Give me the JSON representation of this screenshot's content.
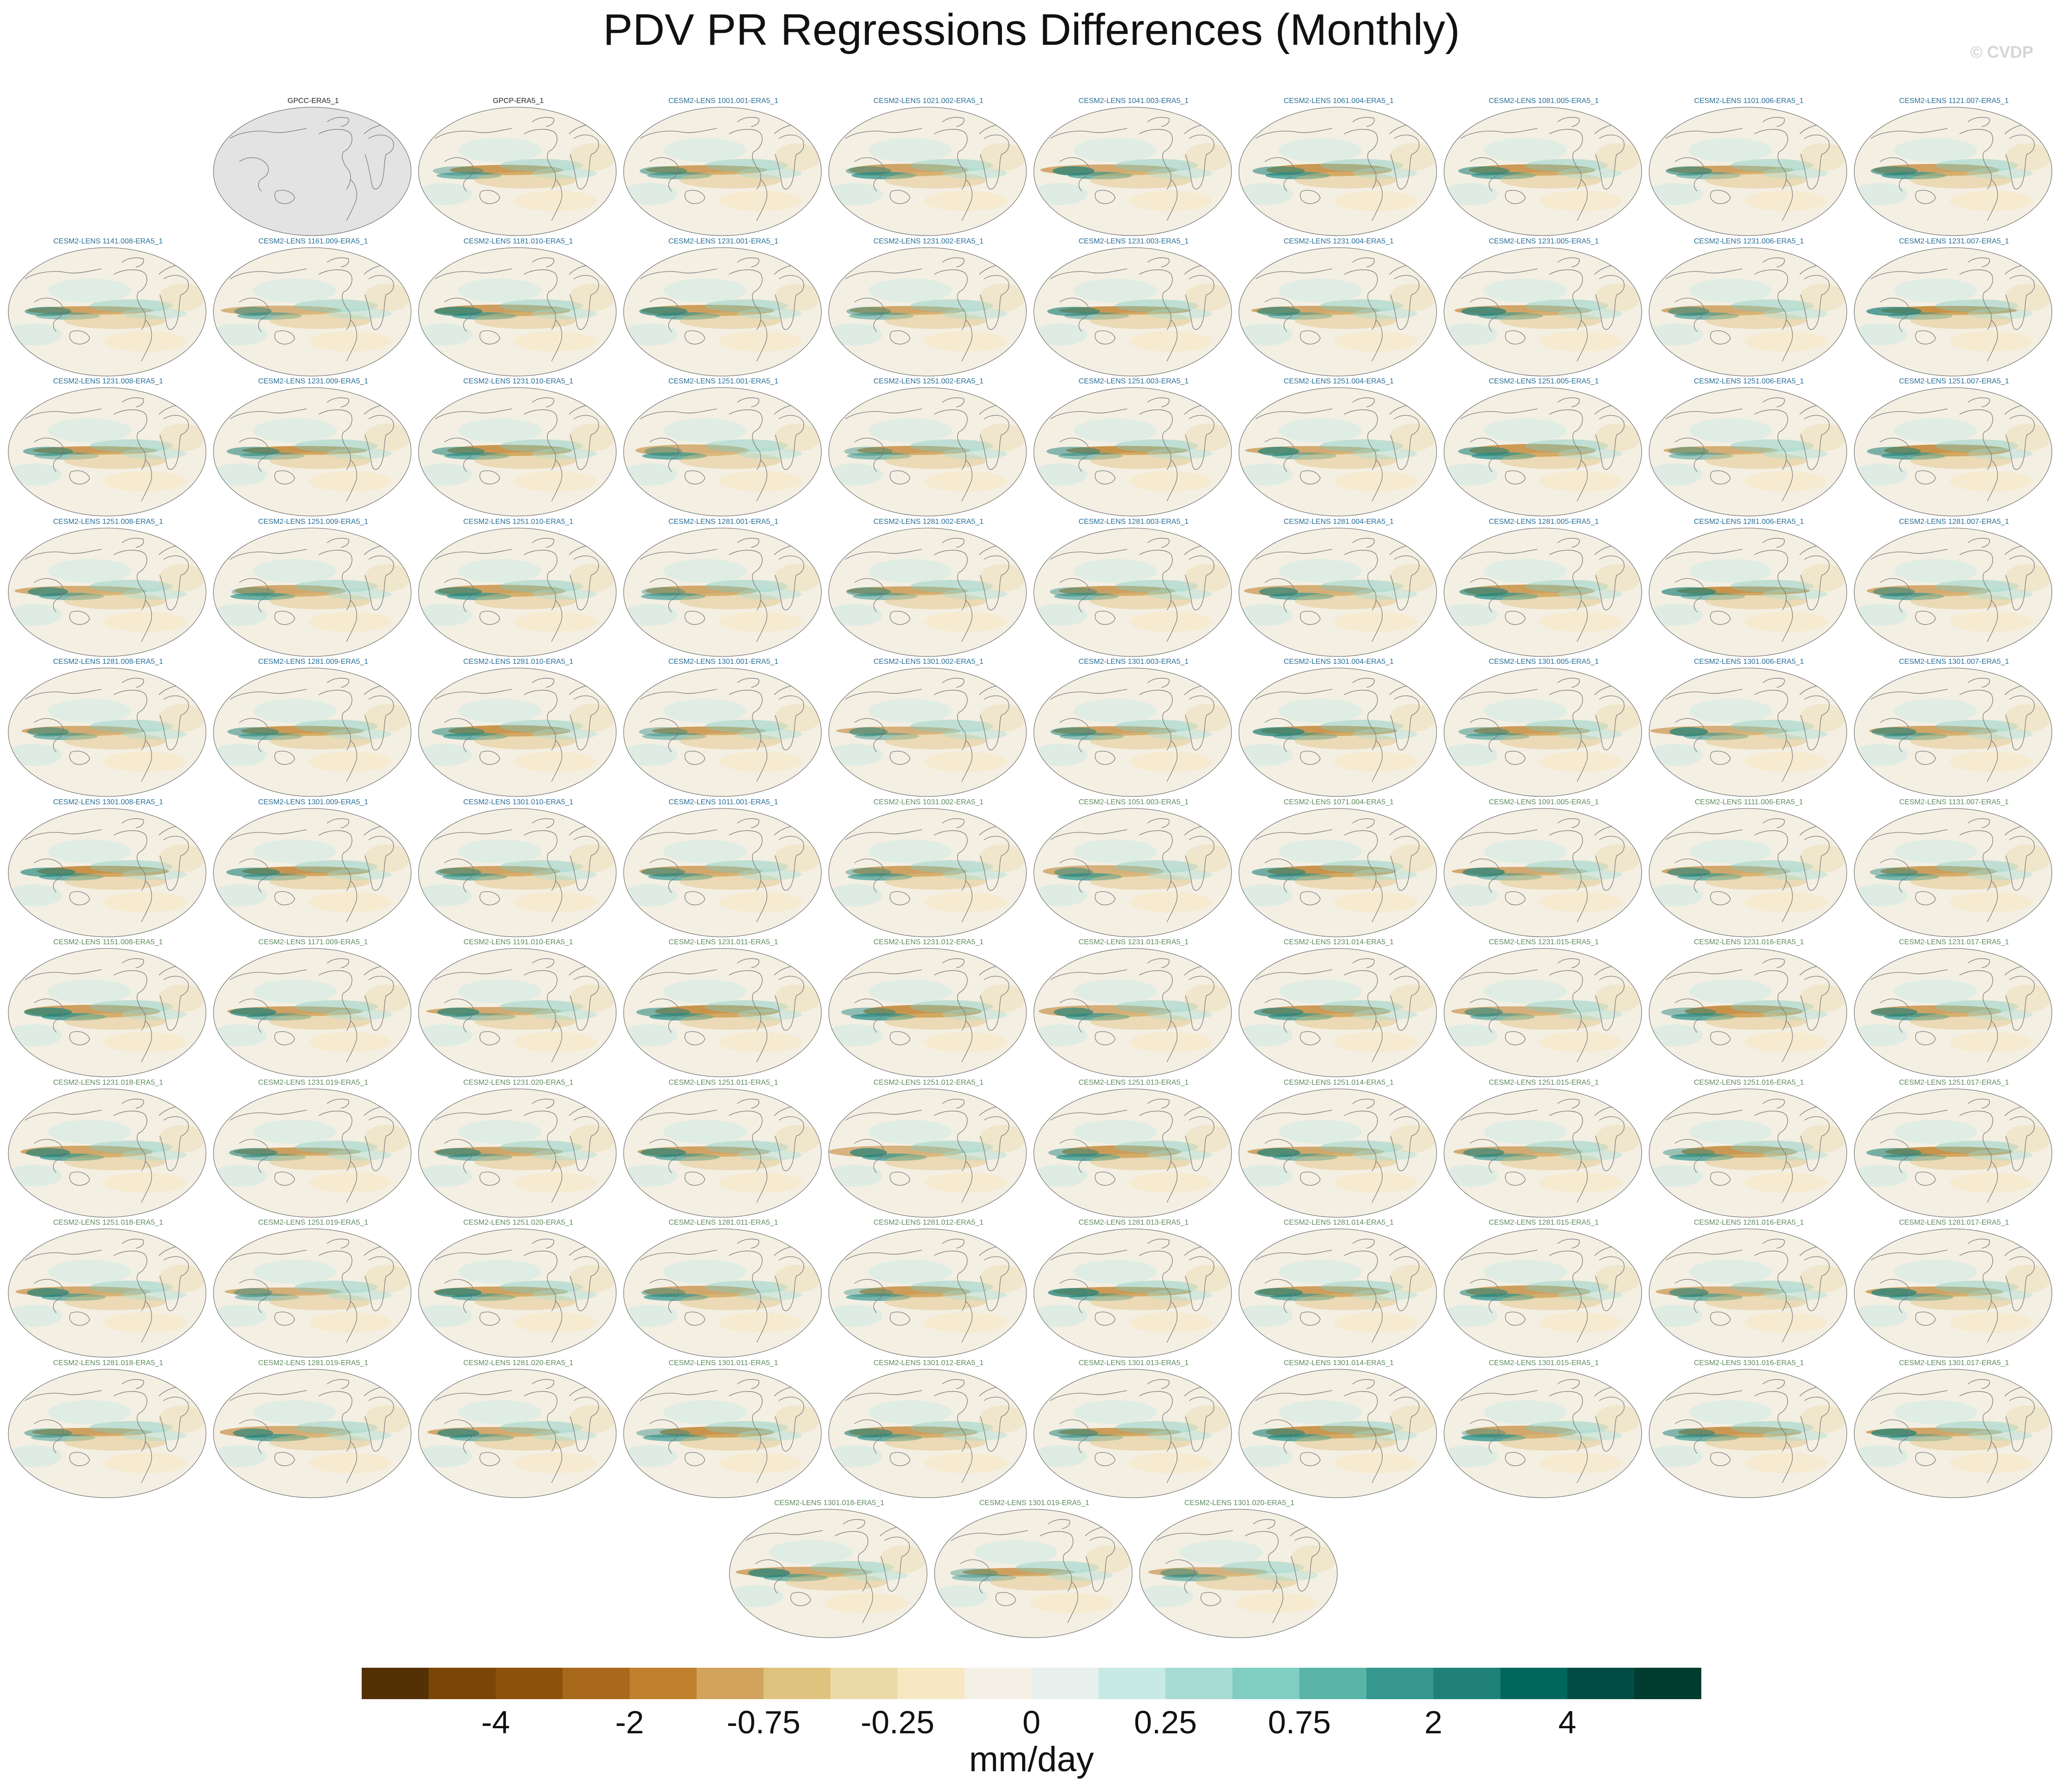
{
  "title": "PDV PR Regressions Differences (Monthly)",
  "watermark": "© CVDP",
  "panels": [
    "GPCC-ERA5_1",
    "GPCP-ERA5_1",
    "CESM2-LENS 1001.001-ERA5_1",
    "CESM2-LENS 1021.002-ERA5_1",
    "CESM2-LENS 1041.003-ERA5_1",
    "CESM2-LENS 1061.004-ERA5_1",
    "CESM2-LENS 1081.005-ERA5_1",
    "CESM2-LENS 1101.006-ERA5_1",
    "CESM2-LENS 1121.007-ERA5_1",
    "CESM2-LENS 1141.008-ERA5_1",
    "CESM2-LENS 1161.009-ERA5_1",
    "CESM2-LENS 1181.010-ERA5_1",
    "CESM2-LENS 1231.001-ERA5_1",
    "CESM2-LENS 1231.002-ERA5_1",
    "CESM2-LENS 1231.003-ERA5_1",
    "CESM2-LENS 1231.004-ERA5_1",
    "CESM2-LENS 1231.005-ERA5_1",
    "CESM2-LENS 1231.006-ERA5_1",
    "CESM2-LENS 1231.007-ERA5_1",
    "CESM2-LENS 1231.008-ERA5_1",
    "CESM2-LENS 1231.009-ERA5_1",
    "CESM2-LENS 1231.010-ERA5_1",
    "CESM2-LENS 1251.001-ERA5_1",
    "CESM2-LENS 1251.002-ERA5_1",
    "CESM2-LENS 1251.003-ERA5_1",
    "CESM2-LENS 1251.004-ERA5_1",
    "CESM2-LENS 1251.005-ERA5_1",
    "CESM2-LENS 1251.006-ERA5_1",
    "CESM2-LENS 1251.007-ERA5_1",
    "CESM2-LENS 1251.008-ERA5_1",
    "CESM2-LENS 1251.009-ERA5_1",
    "CESM2-LENS 1251.010-ERA5_1",
    "CESM2-LENS 1281.001-ERA5_1",
    "CESM2-LENS 1281.002-ERA5_1",
    "CESM2-LENS 1281.003-ERA5_1",
    "CESM2-LENS 1281.004-ERA5_1",
    "CESM2-LENS 1281.005-ERA5_1",
    "CESM2-LENS 1281.006-ERA5_1",
    "CESM2-LENS 1281.007-ERA5_1",
    "CESM2-LENS 1281.008-ERA5_1",
    "CESM2-LENS 1281.009-ERA5_1",
    "CESM2-LENS 1281.010-ERA5_1",
    "CESM2-LENS 1301.001-ERA5_1",
    "CESM2-LENS 1301.002-ERA5_1",
    "CESM2-LENS 1301.003-ERA5_1",
    "CESM2-LENS 1301.004-ERA5_1",
    "CESM2-LENS 1301.005-ERA5_1",
    "CESM2-LENS 1301.006-ERA5_1",
    "CESM2-LENS 1301.007-ERA5_1",
    "CESM2-LENS 1301.008-ERA5_1",
    "CESM2-LENS 1301.009-ERA5_1",
    "CESM2-LENS 1301.010-ERA5_1",
    "CESM2-LENS 1011.001-ERA5_1",
    "CESM2-LENS 1031.002-ERA5_1",
    "CESM2-LENS 1051.003-ERA5_1",
    "CESM2-LENS 1071.004-ERA5_1",
    "CESM2-LENS 1091.005-ERA5_1",
    "CESM2-LENS 1111.006-ERA5_1",
    "CESM2-LENS 1131.007-ERA5_1",
    "CESM2-LENS 1151.008-ERA5_1",
    "CESM2-LENS 1171.009-ERA5_1",
    "CESM2-LENS 1191.010-ERA5_1",
    "CESM2-LENS 1231.011-ERA5_1",
    "CESM2-LENS 1231.012-ERA5_1",
    "CESM2-LENS 1231.013-ERA5_1",
    "CESM2-LENS 1231.014-ERA5_1",
    "CESM2-LENS 1231.015-ERA5_1",
    "CESM2-LENS 1231.016-ERA5_1",
    "CESM2-LENS 1231.017-ERA5_1",
    "CESM2-LENS 1231.018-ERA5_1",
    "CESM2-LENS 1231.019-ERA5_1",
    "CESM2-LENS 1231.020-ERA5_1",
    "CESM2-LENS 1251.011-ERA5_1",
    "CESM2-LENS 1251.012-ERA5_1",
    "CESM2-LENS 1251.013-ERA5_1",
    "CESM2-LENS 1251.014-ERA5_1",
    "CESM2-LENS 1251.015-ERA5_1",
    "CESM2-LENS 1251.016-ERA5_1",
    "CESM2-LENS 1251.017-ERA5_1",
    "CESM2-LENS 1251.018-ERA5_1",
    "CESM2-LENS 1251.019-ERA5_1",
    "CESM2-LENS 1251.020-ERA5_1",
    "CESM2-LENS 1281.011-ERA5_1",
    "CESM2-LENS 1281.012-ERA5_1",
    "CESM2-LENS 1281.013-ERA5_1",
    "CESM2-LENS 1281.014-ERA5_1",
    "CESM2-LENS 1281.015-ERA5_1",
    "CESM2-LENS 1281.016-ERA5_1",
    "CESM2-LENS 1281.017-ERA5_1",
    "CESM2-LENS 1281.018-ERA5_1",
    "CESM2-LENS 1281.019-ERA5_1",
    "CESM2-LENS 1281.020-ERA5_1",
    "CESM2-LENS 1301.011-ERA5_1",
    "CESM2-LENS 1301.012-ERA5_1",
    "CESM2-LENS 1301.013-ERA5_1",
    "CESM2-LENS 1301.014-ERA5_1",
    "CESM2-LENS 1301.015-ERA5_1",
    "CESM2-LENS 1301.016-ERA5_1",
    "CESM2-LENS 1301.017-ERA5_1",
    "CESM2-LENS 1301.018-ERA5_1",
    "CESM2-LENS 1301.019-ERA5_1",
    "CESM2-LENS 1301.020-ERA5_1"
  ],
  "colorbar": {
    "colors": [
      "#543005",
      "#7a4606",
      "#8c510a",
      "#a8691d",
      "#bf812d",
      "#d1a35d",
      "#dfc27d",
      "#ecd9a8",
      "#f6e8c3",
      "#f5f0e6",
      "#e8f0ee",
      "#c7eae5",
      "#a6dcd3",
      "#80cdc1",
      "#5ab4a8",
      "#35978f",
      "#1f8178",
      "#01665e",
      "#014d45",
      "#003c30"
    ],
    "ticks": [
      "-4",
      "-2",
      "-0.75",
      "-0.25",
      "0",
      "0.25",
      "0.75",
      "2",
      "4"
    ],
    "units": "mm/day"
  }
}
